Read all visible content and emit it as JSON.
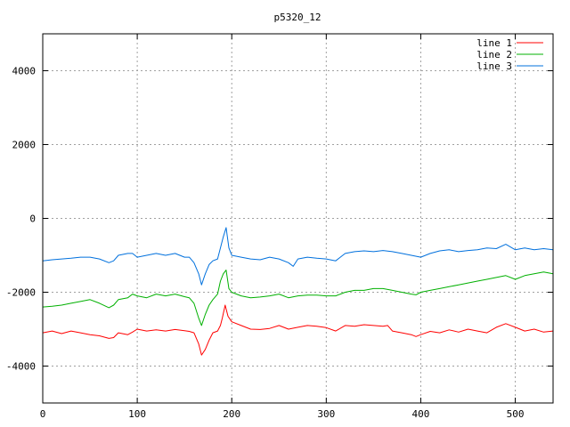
{
  "chart_data": {
    "type": "line",
    "title": "p5320_12",
    "xlabel": "",
    "ylabel": "",
    "xlim": [
      0,
      540
    ],
    "ylim": [
      -5000,
      5000
    ],
    "xticks": [
      0,
      100,
      200,
      300,
      400,
      500
    ],
    "yticks": [
      -4000,
      -2000,
      0,
      2000,
      4000
    ],
    "grid": true,
    "legend_position": "top-right",
    "series": [
      {
        "name": "line 1",
        "color": "#ff0000",
        "points": [
          [
            0,
            -3100
          ],
          [
            10,
            -3050
          ],
          [
            20,
            -3120
          ],
          [
            30,
            -3050
          ],
          [
            40,
            -3100
          ],
          [
            50,
            -3150
          ],
          [
            60,
            -3180
          ],
          [
            70,
            -3250
          ],
          [
            75,
            -3230
          ],
          [
            80,
            -3100
          ],
          [
            90,
            -3150
          ],
          [
            95,
            -3080
          ],
          [
            100,
            -3000
          ],
          [
            110,
            -3050
          ],
          [
            120,
            -3020
          ],
          [
            130,
            -3050
          ],
          [
            140,
            -3010
          ],
          [
            150,
            -3040
          ],
          [
            155,
            -3060
          ],
          [
            160,
            -3100
          ],
          [
            165,
            -3400
          ],
          [
            168,
            -3700
          ],
          [
            172,
            -3550
          ],
          [
            176,
            -3300
          ],
          [
            180,
            -3100
          ],
          [
            185,
            -3050
          ],
          [
            188,
            -2900
          ],
          [
            190,
            -2700
          ],
          [
            193,
            -2350
          ],
          [
            196,
            -2650
          ],
          [
            200,
            -2800
          ],
          [
            210,
            -2900
          ],
          [
            220,
            -3000
          ],
          [
            230,
            -3010
          ],
          [
            240,
            -2980
          ],
          [
            250,
            -2900
          ],
          [
            260,
            -3000
          ],
          [
            270,
            -2950
          ],
          [
            280,
            -2900
          ],
          [
            290,
            -2920
          ],
          [
            300,
            -2960
          ],
          [
            310,
            -3050
          ],
          [
            320,
            -2900
          ],
          [
            330,
            -2920
          ],
          [
            340,
            -2880
          ],
          [
            350,
            -2900
          ],
          [
            360,
            -2920
          ],
          [
            365,
            -2900
          ],
          [
            370,
            -3050
          ],
          [
            380,
            -3100
          ],
          [
            390,
            -3150
          ],
          [
            395,
            -3200
          ],
          [
            400,
            -3150
          ],
          [
            410,
            -3060
          ],
          [
            420,
            -3100
          ],
          [
            430,
            -3020
          ],
          [
            440,
            -3080
          ],
          [
            450,
            -3000
          ],
          [
            460,
            -3050
          ],
          [
            470,
            -3100
          ],
          [
            480,
            -2950
          ],
          [
            490,
            -2850
          ],
          [
            500,
            -2950
          ],
          [
            510,
            -3050
          ],
          [
            520,
            -3000
          ],
          [
            530,
            -3080
          ],
          [
            540,
            -3050
          ]
        ]
      },
      {
        "name": "line 2",
        "color": "#00b000",
        "points": [
          [
            0,
            -2400
          ],
          [
            10,
            -2380
          ],
          [
            20,
            -2350
          ],
          [
            30,
            -2300
          ],
          [
            40,
            -2250
          ],
          [
            50,
            -2200
          ],
          [
            60,
            -2300
          ],
          [
            70,
            -2420
          ],
          [
            75,
            -2350
          ],
          [
            80,
            -2200
          ],
          [
            90,
            -2150
          ],
          [
            95,
            -2050
          ],
          [
            100,
            -2100
          ],
          [
            110,
            -2150
          ],
          [
            120,
            -2050
          ],
          [
            130,
            -2100
          ],
          [
            140,
            -2050
          ],
          [
            150,
            -2120
          ],
          [
            155,
            -2150
          ],
          [
            160,
            -2300
          ],
          [
            165,
            -2700
          ],
          [
            168,
            -2900
          ],
          [
            172,
            -2600
          ],
          [
            176,
            -2350
          ],
          [
            180,
            -2200
          ],
          [
            185,
            -2050
          ],
          [
            188,
            -1700
          ],
          [
            191,
            -1500
          ],
          [
            194,
            -1400
          ],
          [
            197,
            -1900
          ],
          [
            200,
            -2000
          ],
          [
            210,
            -2100
          ],
          [
            220,
            -2150
          ],
          [
            230,
            -2130
          ],
          [
            240,
            -2100
          ],
          [
            250,
            -2050
          ],
          [
            260,
            -2150
          ],
          [
            270,
            -2100
          ],
          [
            280,
            -2080
          ],
          [
            290,
            -2080
          ],
          [
            300,
            -2100
          ],
          [
            310,
            -2100
          ],
          [
            320,
            -2000
          ],
          [
            330,
            -1950
          ],
          [
            340,
            -1950
          ],
          [
            350,
            -1900
          ],
          [
            360,
            -1900
          ],
          [
            370,
            -1950
          ],
          [
            380,
            -2000
          ],
          [
            390,
            -2050
          ],
          [
            395,
            -2070
          ],
          [
            400,
            -2000
          ],
          [
            410,
            -1950
          ],
          [
            420,
            -1900
          ],
          [
            430,
            -1850
          ],
          [
            440,
            -1800
          ],
          [
            450,
            -1750
          ],
          [
            460,
            -1700
          ],
          [
            470,
            -1650
          ],
          [
            480,
            -1600
          ],
          [
            490,
            -1550
          ],
          [
            500,
            -1650
          ],
          [
            510,
            -1550
          ],
          [
            520,
            -1500
          ],
          [
            530,
            -1450
          ],
          [
            540,
            -1500
          ]
        ]
      },
      {
        "name": "line 3",
        "color": "#0070dd",
        "points": [
          [
            0,
            -1150
          ],
          [
            10,
            -1120
          ],
          [
            20,
            -1100
          ],
          [
            30,
            -1080
          ],
          [
            40,
            -1050
          ],
          [
            50,
            -1050
          ],
          [
            60,
            -1100
          ],
          [
            70,
            -1200
          ],
          [
            75,
            -1150
          ],
          [
            80,
            -1000
          ],
          [
            90,
            -950
          ],
          [
            95,
            -950
          ],
          [
            100,
            -1050
          ],
          [
            110,
            -1000
          ],
          [
            120,
            -950
          ],
          [
            130,
            -1000
          ],
          [
            140,
            -950
          ],
          [
            150,
            -1050
          ],
          [
            155,
            -1050
          ],
          [
            160,
            -1200
          ],
          [
            165,
            -1500
          ],
          [
            168,
            -1800
          ],
          [
            172,
            -1500
          ],
          [
            176,
            -1250
          ],
          [
            180,
            -1150
          ],
          [
            185,
            -1100
          ],
          [
            188,
            -800
          ],
          [
            191,
            -500
          ],
          [
            194,
            -250
          ],
          [
            197,
            -800
          ],
          [
            200,
            -1000
          ],
          [
            210,
            -1050
          ],
          [
            220,
            -1100
          ],
          [
            230,
            -1120
          ],
          [
            240,
            -1050
          ],
          [
            250,
            -1100
          ],
          [
            260,
            -1200
          ],
          [
            265,
            -1300
          ],
          [
            270,
            -1100
          ],
          [
            280,
            -1050
          ],
          [
            290,
            -1080
          ],
          [
            300,
            -1100
          ],
          [
            310,
            -1150
          ],
          [
            320,
            -950
          ],
          [
            330,
            -900
          ],
          [
            340,
            -880
          ],
          [
            350,
            -900
          ],
          [
            360,
            -870
          ],
          [
            370,
            -900
          ],
          [
            380,
            -950
          ],
          [
            390,
            -1000
          ],
          [
            400,
            -1050
          ],
          [
            410,
            -950
          ],
          [
            420,
            -880
          ],
          [
            430,
            -850
          ],
          [
            440,
            -900
          ],
          [
            450,
            -870
          ],
          [
            460,
            -850
          ],
          [
            470,
            -800
          ],
          [
            480,
            -820
          ],
          [
            490,
            -700
          ],
          [
            500,
            -850
          ],
          [
            510,
            -800
          ],
          [
            520,
            -850
          ],
          [
            530,
            -820
          ],
          [
            540,
            -850
          ]
        ]
      }
    ]
  }
}
